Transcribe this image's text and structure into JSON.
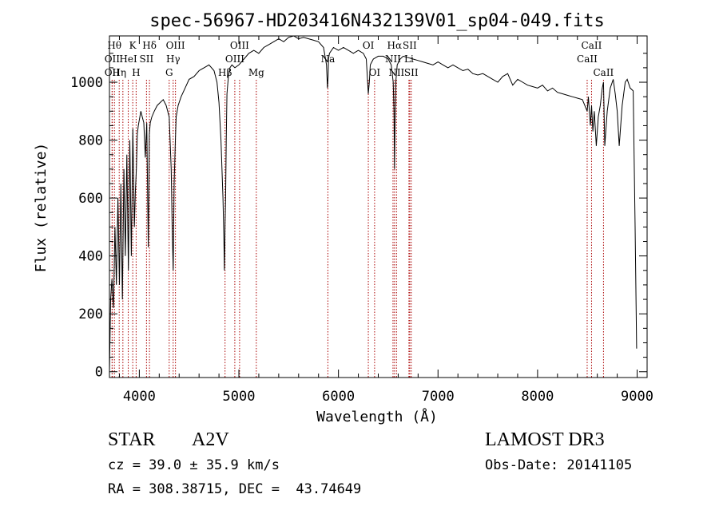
{
  "chart_data": {
    "type": "line",
    "title": "spec-56967-HD203416N432139V01_sp04-049.fits",
    "xlabel": "Wavelength (Å)",
    "ylabel": "Flux (relative)",
    "xlim": [
      3700,
      9100
    ],
    "ylim": [
      -20,
      1160
    ],
    "xticks": [
      4000,
      5000,
      6000,
      7000,
      8000,
      9000
    ],
    "yticks": [
      0,
      200,
      400,
      600,
      800,
      1000
    ],
    "grid": false,
    "line_color": "#000000",
    "marker_color": "#aa0000",
    "series": [
      {
        "x": [
          3700,
          3712,
          3725,
          3740,
          3755,
          3770,
          3785,
          3800,
          3815,
          3830,
          3845,
          3860,
          3875,
          3890,
          3905,
          3920,
          3935,
          3950,
          3960,
          3970,
          3980,
          3990,
          4000,
          4015,
          4030,
          4045,
          4060,
          4075,
          4090,
          4100,
          4110,
          4125,
          4150,
          4180,
          4210,
          4240,
          4270,
          4300,
          4320,
          4330,
          4340,
          4350,
          4360,
          4370,
          4390,
          4420,
          4460,
          4500,
          4550,
          4600,
          4650,
          4700,
          4750,
          4780,
          4800,
          4820,
          4840,
          4850,
          4855,
          4861,
          4867,
          4873,
          4880,
          4895,
          4910,
          4930,
          4960,
          5000,
          5050,
          5100,
          5150,
          5200,
          5250,
          5300,
          5350,
          5400,
          5450,
          5500,
          5550,
          5600,
          5650,
          5700,
          5750,
          5800,
          5850,
          5880,
          5890,
          5896,
          5900,
          5910,
          5950,
          6000,
          6050,
          6100,
          6150,
          6200,
          6250,
          6280,
          6300,
          6310,
          6320,
          6350,
          6400,
          6450,
          6500,
          6530,
          6550,
          6558,
          6563,
          6568,
          6576,
          6590,
          6620,
          6650,
          6700,
          6750,
          6800,
          6850,
          6900,
          6950,
          7000,
          7050,
          7100,
          7150,
          7200,
          7250,
          7300,
          7350,
          7400,
          7450,
          7500,
          7550,
          7600,
          7650,
          7700,
          7750,
          7800,
          7850,
          7900,
          7950,
          8000,
          8050,
          8100,
          8150,
          8200,
          8250,
          8300,
          8350,
          8400,
          8450,
          8498,
          8510,
          8530,
          8542,
          8555,
          8570,
          8590,
          8610,
          8630,
          8650,
          8662,
          8675,
          8700,
          8730,
          8760,
          8780,
          8800,
          8820,
          8850,
          8880,
          8900,
          8930,
          8960,
          8980,
          8995
        ],
        "y": [
          0,
          250,
          320,
          220,
          500,
          300,
          600,
          300,
          650,
          250,
          700,
          400,
          750,
          350,
          800,
          400,
          840,
          500,
          620,
          700,
          820,
          850,
          870,
          900,
          880,
          860,
          740,
          860,
          430,
          820,
          860,
          880,
          900,
          920,
          930,
          940,
          920,
          880,
          700,
          500,
          350,
          650,
          780,
          880,
          920,
          950,
          980,
          1010,
          1020,
          1040,
          1050,
          1060,
          1040,
          1000,
          930,
          800,
          600,
          450,
          350,
          510,
          600,
          800,
          960,
          1020,
          1050,
          1060,
          1050,
          1060,
          1080,
          1100,
          1110,
          1100,
          1120,
          1130,
          1140,
          1150,
          1140,
          1155,
          1160,
          1150,
          1155,
          1150,
          1145,
          1140,
          1120,
          1060,
          980,
          1020,
          1080,
          1100,
          1120,
          1110,
          1120,
          1110,
          1100,
          1110,
          1100,
          1080,
          960,
          1000,
          1060,
          1080,
          1090,
          1090,
          1080,
          1060,
          1000,
          900,
          700,
          850,
          1000,
          1060,
          1080,
          1090,
          1085,
          1080,
          1075,
          1070,
          1065,
          1060,
          1070,
          1060,
          1050,
          1060,
          1050,
          1040,
          1045,
          1030,
          1025,
          1030,
          1020,
          1010,
          1000,
          1020,
          1030,
          990,
          1010,
          1000,
          990,
          985,
          980,
          990,
          970,
          980,
          965,
          960,
          955,
          950,
          945,
          940,
          900,
          950,
          850,
          920,
          830,
          900,
          780,
          880,
          920,
          980,
          1000,
          780,
          900,
          980,
          1010,
          960,
          900,
          780,
          920,
          1000,
          1010,
          980,
          970,
          500,
          80
        ]
      }
    ],
    "line_markers": [
      {
        "x": 3750,
        "label": "Hθ",
        "tier": 1
      },
      {
        "x": 3727,
        "label": "OII",
        "tier": 2
      },
      {
        "x": 3727,
        "label": "OII",
        "tier": 3
      },
      {
        "x": 3798,
        "label": "Hη",
        "tier": 3
      },
      {
        "x": 3835,
        "label": "",
        "tier": 0
      },
      {
        "x": 3889,
        "label": "HeI",
        "tier": 2
      },
      {
        "x": 3934,
        "label": "K",
        "tier": 1
      },
      {
        "x": 3968,
        "label": "H",
        "tier": 3
      },
      {
        "x": 4072,
        "label": "SII",
        "tier": 2
      },
      {
        "x": 4102,
        "label": "Hδ",
        "tier": 1
      },
      {
        "x": 4300,
        "label": "G",
        "tier": 3
      },
      {
        "x": 4340,
        "label": "Hγ",
        "tier": 2
      },
      {
        "x": 4363,
        "label": "OIII",
        "tier": 1
      },
      {
        "x": 4861,
        "label": "Hβ",
        "tier": 3
      },
      {
        "x": 4959,
        "label": "OIII",
        "tier": 2
      },
      {
        "x": 5007,
        "label": "OIII",
        "tier": 1
      },
      {
        "x": 5175,
        "label": "Mg",
        "tier": 3
      },
      {
        "x": 5894,
        "label": "Na",
        "tier": 2
      },
      {
        "x": 6300,
        "label": "OI",
        "tier": 1
      },
      {
        "x": 6363,
        "label": "OI",
        "tier": 3
      },
      {
        "x": 6548,
        "label": "NII",
        "tier": 2
      },
      {
        "x": 6563,
        "label": "Hα",
        "tier": 1
      },
      {
        "x": 6583,
        "label": "NII",
        "tier": 3
      },
      {
        "x": 6708,
        "label": "Li",
        "tier": 2
      },
      {
        "x": 6716,
        "label": "SII",
        "tier": 1
      },
      {
        "x": 6731,
        "label": "SII",
        "tier": 3
      },
      {
        "x": 8498,
        "label": "CaII",
        "tier": 2
      },
      {
        "x": 8542,
        "label": "CaII",
        "tier": 1
      },
      {
        "x": 8662,
        "label": "CaII",
        "tier": 3
      }
    ]
  },
  "footer": {
    "object_type": "STAR",
    "spectral_class": "A2V",
    "survey": "LAMOST DR3",
    "redshift": "cz = 39.0 ± 35.9 km/s",
    "obs_date": "Obs-Date: 20141105",
    "coords": "RA = 308.38715, DEC =  43.74649"
  }
}
